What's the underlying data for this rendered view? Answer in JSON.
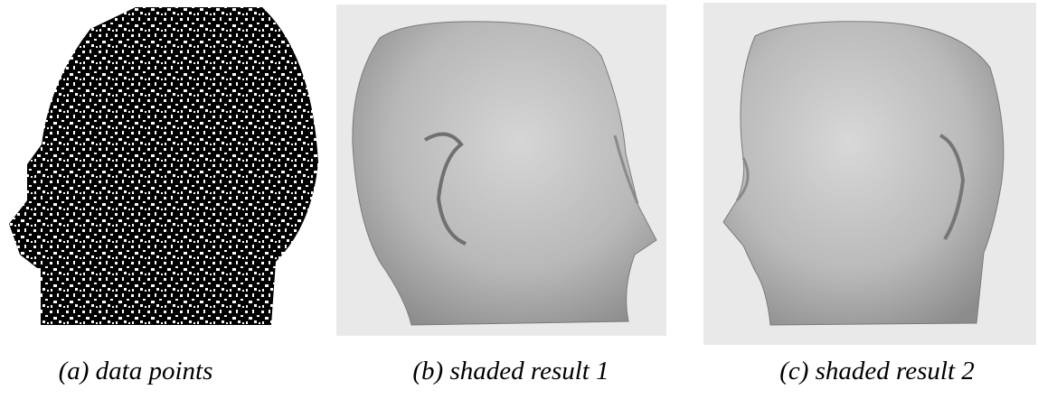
{
  "figure": {
    "panels": [
      {
        "caption": "(a) data points"
      },
      {
        "caption": "(b) shaded result 1"
      },
      {
        "caption": "(c) shaded result 2"
      }
    ]
  }
}
